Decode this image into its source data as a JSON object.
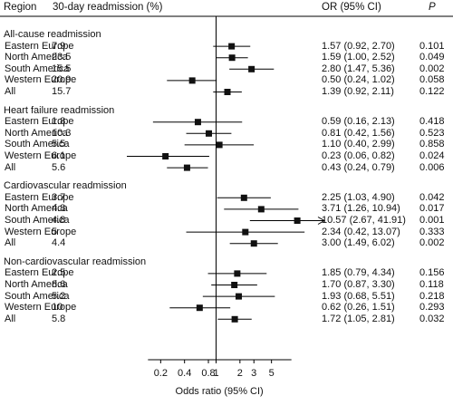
{
  "header": {
    "region": "Region",
    "readmission": "30-day readmission (%)",
    "or": "OR (95% CI)",
    "p": "P"
  },
  "chart_data": {
    "type": "forest",
    "xlabel": "Odds ratio (95% CI)",
    "x_scale": "log",
    "xlim": [
      0.06,
      42
    ],
    "ticks": [
      "0.2",
      "0.4",
      "0.8",
      "1",
      "2",
      "3",
      "5"
    ],
    "reference_line": 1,
    "groups": [
      {
        "title": "All-cause readmission",
        "rows": [
          {
            "region": "Eastern Europe",
            "pct": "7.9",
            "or": 1.57,
            "lo": 0.92,
            "hi": 2.7,
            "ci": "1.57 (0.92, 2.70)",
            "p": "0.101"
          },
          {
            "region": "North America",
            "pct": "23.5",
            "or": 1.59,
            "lo": 1.0,
            "hi": 2.52,
            "ci": "1.59 (1.00, 2.52)",
            "p": "0.049"
          },
          {
            "region": "South America",
            "pct": "15.5",
            "or": 2.8,
            "lo": 1.47,
            "hi": 5.36,
            "ci": "2.80 (1.47, 5.36)",
            "p": "0.002"
          },
          {
            "region": "Western Europe",
            "pct": "20.9",
            "or": 0.5,
            "lo": 0.24,
            "hi": 1.02,
            "ci": "0.50 (0.24, 1.02)",
            "p": "0.058"
          },
          {
            "region": "All",
            "pct": "15.7",
            "or": 1.39,
            "lo": 0.92,
            "hi": 2.11,
            "ci": "1.39 (0.92, 2.11)",
            "p": "0.122"
          }
        ]
      },
      {
        "title": "Heart failure readmission",
        "rows": [
          {
            "region": "Eastern Europe",
            "pct": "1.8",
            "or": 0.59,
            "lo": 0.16,
            "hi": 2.13,
            "ci": "0.59 (0.16, 2.13)",
            "p": "0.418"
          },
          {
            "region": "North America",
            "pct": "10.3",
            "or": 0.81,
            "lo": 0.42,
            "hi": 1.56,
            "ci": "0.81 (0.42, 1.56)",
            "p": "0.523"
          },
          {
            "region": "South America",
            "pct": "5.5",
            "or": 1.1,
            "lo": 0.4,
            "hi": 2.99,
            "ci": "1.10 (0.40, 2.99)",
            "p": "0.858"
          },
          {
            "region": "Western Europe",
            "pct": "6.1",
            "or": 0.23,
            "lo": 0.06,
            "hi": 0.82,
            "ci": "0.23 (0.06, 0.82)",
            "p": "0.024"
          },
          {
            "region": "All",
            "pct": "5.6",
            "or": 0.43,
            "lo": 0.24,
            "hi": 0.79,
            "ci": "0.43 (0.24, 0.79)",
            "p": "0.006"
          }
        ]
      },
      {
        "title": "Cardiovascular readmission",
        "rows": [
          {
            "region": "Eastern Europe",
            "pct": "3.7",
            "or": 2.25,
            "lo": 1.03,
            "hi": 4.9,
            "ci": "2.25 (1.03, 4.90)",
            "p": "0.042"
          },
          {
            "region": "North America",
            "pct": "4.8",
            "or": 3.71,
            "lo": 1.26,
            "hi": 10.94,
            "ci": "3.71 (1.26, 10.94)",
            "p": "0.017"
          },
          {
            "region": "South America",
            "pct": "4.8",
            "or": 10.57,
            "lo": 2.67,
            "hi": 41.91,
            "ci": "10.57 (2.67, 41.91)",
            "p": "0.001"
          },
          {
            "region": "Western Europe",
            "pct": "5",
            "or": 2.34,
            "lo": 0.42,
            "hi": 13.07,
            "ci": "2.34 (0.42, 13.07)",
            "p": "0.333"
          },
          {
            "region": "All",
            "pct": "4.4",
            "or": 3.0,
            "lo": 1.49,
            "hi": 6.02,
            "ci": "3.00 (1.49, 6.02)",
            "p": "0.002"
          }
        ]
      },
      {
        "title": "Non-cardiovascular readmission",
        "rows": [
          {
            "region": "Eastern Europe",
            "pct": "2.5",
            "or": 1.85,
            "lo": 0.79,
            "hi": 4.34,
            "ci": "1.85 (0.79, 4.34)",
            "p": "0.156"
          },
          {
            "region": "North America",
            "pct": "8.6",
            "or": 1.7,
            "lo": 0.87,
            "hi": 3.3,
            "ci": "1.70 (0.87, 3.30)",
            "p": "0.118"
          },
          {
            "region": "South America",
            "pct": "5.2",
            "or": 1.93,
            "lo": 0.68,
            "hi": 5.51,
            "ci": "1.93 (0.68, 5.51)",
            "p": "0.218"
          },
          {
            "region": "Western Europe",
            "pct": "10",
            "or": 0.62,
            "lo": 0.26,
            "hi": 1.51,
            "ci": "0.62 (0.26, 1.51)",
            "p": "0.293"
          },
          {
            "region": "All",
            "pct": "5.8",
            "or": 1.72,
            "lo": 1.05,
            "hi": 2.81,
            "ci": "1.72 (1.05, 2.81)",
            "p": "0.032"
          }
        ]
      }
    ]
  }
}
